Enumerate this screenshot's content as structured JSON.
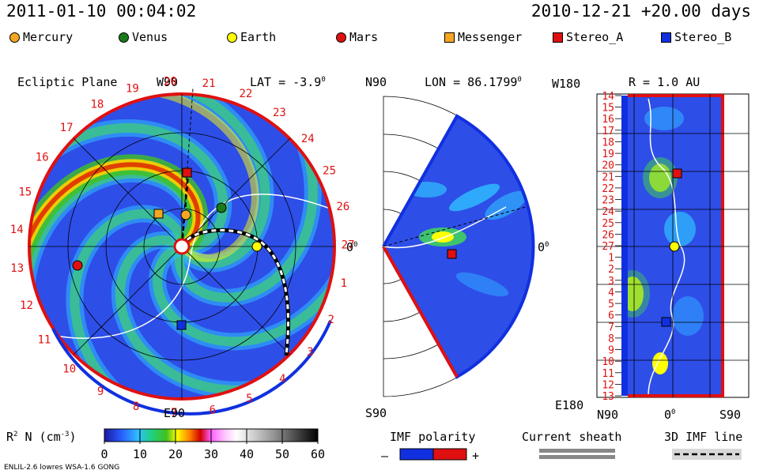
{
  "header": {
    "left": "2011-01-10 00:04:02",
    "right": "2010-12-21 +20.00 days"
  },
  "legend": [
    {
      "label": "Mercury",
      "color": "#f5a623",
      "shape": "circle"
    },
    {
      "label": "Venus",
      "color": "#1a7a1a",
      "shape": "circle"
    },
    {
      "label": "Earth",
      "color": "#ffff00",
      "shape": "circle"
    },
    {
      "label": "Mars",
      "color": "#e01010",
      "shape": "circle"
    },
    {
      "label": "Messenger",
      "color": "#f5a623",
      "shape": "square"
    },
    {
      "label": "Stereo_A",
      "color": "#e01010",
      "shape": "square"
    },
    {
      "label": "Stereo_B",
      "color": "#1030e0",
      "shape": "square"
    }
  ],
  "panel_ecliptic": {
    "title": "Ecliptic Plane",
    "top_label": "W90",
    "lat_label": "LAT = -3.9",
    "lat_sup": "0",
    "bottom_label": "E90",
    "right_label": "0",
    "right_sup": "0",
    "numbers": [
      "20",
      "21",
      "22",
      "23",
      "24",
      "25",
      "26",
      "27",
      "1",
      "2",
      "3",
      "4",
      "5",
      "6",
      "7",
      "8",
      "9",
      "10",
      "11",
      "12",
      "13",
      "14",
      "15",
      "16",
      "17",
      "18",
      "19"
    ]
  },
  "panel_meridional": {
    "top_label": "N90",
    "lon_label": "LON = 86.1799",
    "lon_sup": "0",
    "bottom_label": "S90",
    "right_label": "0",
    "right_sup": "0"
  },
  "panel_radial": {
    "top_left_label": "W180",
    "r_label": "R = 1.0 AU",
    "bottom_left_label": "E180",
    "x_labels": [
      "N90",
      "0",
      "S90"
    ],
    "x_sup": "0",
    "y_labels": [
      "14",
      "15",
      "16",
      "17",
      "18",
      "19",
      "20",
      "21",
      "22",
      "23",
      "24",
      "25",
      "26",
      "27",
      "1",
      "2",
      "3",
      "4",
      "5",
      "6",
      "7",
      "8",
      "9",
      "10",
      "11",
      "12",
      "13"
    ]
  },
  "colorbar": {
    "label": "R",
    "label_sup": "2",
    "label_rest": " N (cm",
    "label_exp": "-3",
    "label_end": ")",
    "ticks": [
      "0",
      "10",
      "20",
      "30",
      "40",
      "50",
      "60"
    ]
  },
  "imf_polarity": {
    "title": "IMF polarity",
    "minus": "–",
    "plus": "+"
  },
  "current_sheath": {
    "title": "Current sheath"
  },
  "imf_line": {
    "title": "3D IMF line"
  },
  "footer": {
    "model": "ENLIL-2.6 lowres WSA-1.6 GONG"
  },
  "chart_data": [
    {
      "type": "heatmap",
      "title": "Ecliptic Plane",
      "variable": "R2 N (cm-3)",
      "value_range": [
        0,
        60
      ],
      "bodies": [
        "Mercury",
        "Venus",
        "Earth",
        "Mars",
        "Messenger",
        "Stereo_A",
        "Stereo_B"
      ]
    },
    {
      "type": "heatmap",
      "title": "LON = 86.1799",
      "variable": "R2 N (cm-3)",
      "value_range": [
        0,
        60
      ],
      "bodies": [
        "Stereo_A"
      ]
    },
    {
      "type": "heatmap",
      "title": "R = 1.0 AU",
      "variable": "R2 N (cm-3)",
      "value_range": [
        0,
        60
      ],
      "bodies": [
        "Stereo_A",
        "Earth",
        "Stereo_B"
      ]
    }
  ]
}
